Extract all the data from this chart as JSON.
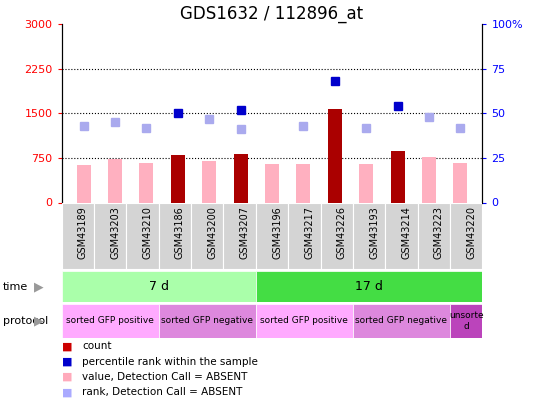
{
  "title": "GDS1632 / 112896_at",
  "samples": [
    "GSM43189",
    "GSM43203",
    "GSM43210",
    "GSM43186",
    "GSM43200",
    "GSM43207",
    "GSM43196",
    "GSM43217",
    "GSM43226",
    "GSM43193",
    "GSM43214",
    "GSM43223",
    "GSM43220"
  ],
  "count_values": [
    null,
    null,
    null,
    800,
    null,
    820,
    null,
    null,
    1580,
    null,
    870,
    null,
    null
  ],
  "count_absent": [
    630,
    730,
    670,
    null,
    700,
    null,
    650,
    650,
    null,
    650,
    null,
    760,
    670
  ],
  "rank_values_pct": [
    null,
    null,
    null,
    50,
    null,
    52,
    null,
    null,
    68,
    null,
    54,
    null,
    null
  ],
  "rank_absent_pct": [
    43,
    45,
    42,
    null,
    47,
    41,
    null,
    43,
    null,
    42,
    null,
    48,
    42
  ],
  "left_ylim": [
    0,
    3000
  ],
  "left_yticks": [
    0,
    750,
    1500,
    2250,
    3000
  ],
  "right_ylim": [
    0,
    100
  ],
  "right_yticks": [
    0,
    25,
    50,
    75,
    100
  ],
  "right_yticklabels": [
    "0",
    "25",
    "50",
    "75",
    "100%"
  ],
  "time_groups": [
    {
      "label": "7 d",
      "start": 0,
      "end": 6,
      "color": "#aaffaa"
    },
    {
      "label": "17 d",
      "start": 6,
      "end": 13,
      "color": "#44dd44"
    }
  ],
  "protocol_groups": [
    {
      "label": "sorted GFP positive",
      "start": 0,
      "end": 3,
      "color": "#ffaaff"
    },
    {
      "label": "sorted GFP negative",
      "start": 3,
      "end": 6,
      "color": "#dd88dd"
    },
    {
      "label": "sorted GFP positive",
      "start": 6,
      "end": 9,
      "color": "#ffaaff"
    },
    {
      "label": "sorted GFP negative",
      "start": 9,
      "end": 12,
      "color": "#dd88dd"
    },
    {
      "label": "unsorte\nd",
      "start": 12,
      "end": 13,
      "color": "#bb44bb"
    }
  ],
  "legend_items": [
    {
      "label": "count",
      "color": "#cc0000"
    },
    {
      "label": "percentile rank within the sample",
      "color": "#0000cc"
    },
    {
      "label": "value, Detection Call = ABSENT",
      "color": "#ffaabb"
    },
    {
      "label": "rank, Detection Call = ABSENT",
      "color": "#aaaaff"
    }
  ],
  "bar_width": 0.45,
  "count_color": "#aa0000",
  "count_absent_color": "#ffb0c0",
  "rank_color": "#0000cc",
  "rank_absent_color": "#aaaaee"
}
